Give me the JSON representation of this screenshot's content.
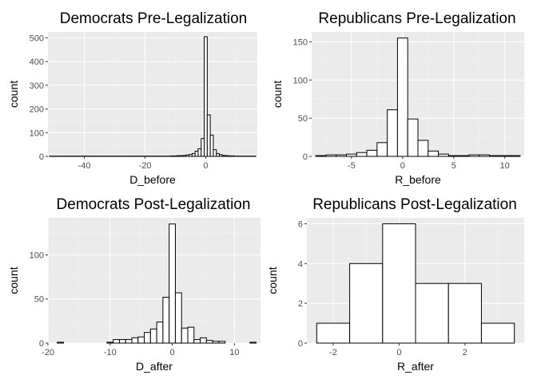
{
  "chart_data": [
    {
      "type": "bar",
      "title": "Democrats Pre-Legalization",
      "xlabel": "D_before",
      "ylabel": "count",
      "xlim": [
        -52,
        17
      ],
      "ylim": [
        0,
        525
      ],
      "xticks": [
        -40,
        -20,
        0
      ],
      "yticks": [
        0,
        100,
        200,
        300,
        400,
        500
      ],
      "bin_width": 1,
      "bins": [
        {
          "x": -51,
          "count": 1
        },
        {
          "x": -50,
          "count": 1
        },
        {
          "x": -49,
          "count": 1
        },
        {
          "x": -48,
          "count": 1
        },
        {
          "x": -47,
          "count": 1
        },
        {
          "x": -46,
          "count": 1
        },
        {
          "x": -45,
          "count": 1
        },
        {
          "x": -44,
          "count": 1
        },
        {
          "x": -43,
          "count": 1
        },
        {
          "x": -42,
          "count": 1
        },
        {
          "x": -41,
          "count": 1
        },
        {
          "x": -40,
          "count": 1
        },
        {
          "x": -39,
          "count": 1
        },
        {
          "x": -38,
          "count": 1
        },
        {
          "x": -37,
          "count": 1
        },
        {
          "x": -36,
          "count": 1
        },
        {
          "x": -35,
          "count": 1
        },
        {
          "x": -34,
          "count": 1
        },
        {
          "x": -33,
          "count": 1
        },
        {
          "x": -32,
          "count": 1
        },
        {
          "x": -31,
          "count": 1
        },
        {
          "x": -30,
          "count": 1
        },
        {
          "x": -29,
          "count": 1
        },
        {
          "x": -28,
          "count": 1
        },
        {
          "x": -27,
          "count": 1
        },
        {
          "x": -26,
          "count": 1
        },
        {
          "x": -25,
          "count": 1
        },
        {
          "x": -24,
          "count": 1
        },
        {
          "x": -23,
          "count": 1
        },
        {
          "x": -22,
          "count": 1
        },
        {
          "x": -21,
          "count": 1
        },
        {
          "x": -20,
          "count": 1
        },
        {
          "x": -19,
          "count": 1
        },
        {
          "x": -18,
          "count": 1
        },
        {
          "x": -17,
          "count": 1
        },
        {
          "x": -16,
          "count": 1
        },
        {
          "x": -15,
          "count": 1
        },
        {
          "x": -14,
          "count": 1
        },
        {
          "x": -13,
          "count": 1
        },
        {
          "x": -12,
          "count": 1
        },
        {
          "x": -11,
          "count": 2
        },
        {
          "x": -10,
          "count": 2
        },
        {
          "x": -9,
          "count": 3
        },
        {
          "x": -8,
          "count": 3
        },
        {
          "x": -7,
          "count": 4
        },
        {
          "x": -6,
          "count": 6
        },
        {
          "x": -5,
          "count": 8
        },
        {
          "x": -4,
          "count": 12
        },
        {
          "x": -3,
          "count": 22
        },
        {
          "x": -2,
          "count": 32
        },
        {
          "x": -1,
          "count": 75
        },
        {
          "x": 0,
          "count": 505
        },
        {
          "x": 1,
          "count": 175
        },
        {
          "x": 2,
          "count": 90
        },
        {
          "x": 3,
          "count": 28
        },
        {
          "x": 4,
          "count": 12
        },
        {
          "x": 5,
          "count": 7
        },
        {
          "x": 6,
          "count": 4
        },
        {
          "x": 7,
          "count": 3
        },
        {
          "x": 8,
          "count": 2
        },
        {
          "x": 9,
          "count": 2
        },
        {
          "x": 10,
          "count": 1
        },
        {
          "x": 11,
          "count": 1
        },
        {
          "x": 12,
          "count": 1
        },
        {
          "x": 13,
          "count": 1
        },
        {
          "x": 14,
          "count": 1
        },
        {
          "x": 15,
          "count": 1
        },
        {
          "x": 16,
          "count": 1
        }
      ]
    },
    {
      "type": "bar",
      "title": "Republicans Pre-Legalization",
      "xlabel": "R_before",
      "ylabel": "count",
      "xlim": [
        -8.9,
        11.9
      ],
      "ylim": [
        0,
        163
      ],
      "xticks": [
        -5,
        0,
        5,
        10
      ],
      "yticks": [
        0,
        50,
        100,
        150
      ],
      "bin_width": 1,
      "bins": [
        {
          "x": -8,
          "count": 1
        },
        {
          "x": -7,
          "count": 2
        },
        {
          "x": -6,
          "count": 2
        },
        {
          "x": -5,
          "count": 3
        },
        {
          "x": -4,
          "count": 5
        },
        {
          "x": -3,
          "count": 8
        },
        {
          "x": -2,
          "count": 18
        },
        {
          "x": -1,
          "count": 61
        },
        {
          "x": 0,
          "count": 155
        },
        {
          "x": 1,
          "count": 49
        },
        {
          "x": 2,
          "count": 21
        },
        {
          "x": 3,
          "count": 7
        },
        {
          "x": 4,
          "count": 3
        },
        {
          "x": 5,
          "count": 1
        },
        {
          "x": 6,
          "count": 1
        },
        {
          "x": 7,
          "count": 2
        },
        {
          "x": 8,
          "count": 2
        },
        {
          "x": 9,
          "count": 1
        },
        {
          "x": 10,
          "count": 1
        },
        {
          "x": 11,
          "count": 1
        }
      ]
    },
    {
      "type": "bar",
      "title": "Democrats Post-Legalization",
      "xlabel": "D_after",
      "ylabel": "count",
      "xlim": [
        -20,
        14.2
      ],
      "ylim": [
        0,
        142
      ],
      "xticks": [
        -20,
        -10,
        0,
        10
      ],
      "yticks": [
        0,
        50,
        100
      ],
      "bin_width": 1,
      "bins": [
        {
          "x": -18,
          "count": 1
        },
        {
          "x": -17,
          "count": 0
        },
        {
          "x": -16,
          "count": 0
        },
        {
          "x": -15,
          "count": 0
        },
        {
          "x": -14,
          "count": 0
        },
        {
          "x": -13,
          "count": 0
        },
        {
          "x": -12,
          "count": 0
        },
        {
          "x": -11,
          "count": 0
        },
        {
          "x": -10,
          "count": 1
        },
        {
          "x": -9,
          "count": 4
        },
        {
          "x": -8,
          "count": 4
        },
        {
          "x": -7,
          "count": 4
        },
        {
          "x": -6,
          "count": 6
        },
        {
          "x": -5,
          "count": 7
        },
        {
          "x": -4,
          "count": 12
        },
        {
          "x": -3,
          "count": 16
        },
        {
          "x": -2,
          "count": 24
        },
        {
          "x": -1,
          "count": 52
        },
        {
          "x": 0,
          "count": 135
        },
        {
          "x": 1,
          "count": 57
        },
        {
          "x": 2,
          "count": 17
        },
        {
          "x": 3,
          "count": 18
        },
        {
          "x": 4,
          "count": 4
        },
        {
          "x": 5,
          "count": 6
        },
        {
          "x": 6,
          "count": 3
        },
        {
          "x": 7,
          "count": 2
        },
        {
          "x": 8,
          "count": 2
        },
        {
          "x": 9,
          "count": 0
        },
        {
          "x": 10,
          "count": 0
        },
        {
          "x": 11,
          "count": 0
        },
        {
          "x": 12,
          "count": 0
        },
        {
          "x": 13,
          "count": 1
        }
      ]
    },
    {
      "type": "bar",
      "title": "Republicans Post-Legalization",
      "xlabel": "R_after",
      "ylabel": "count",
      "xlim": [
        -2.8,
        3.8
      ],
      "ylim": [
        0,
        6.3
      ],
      "xticks": [
        -2,
        0,
        2
      ],
      "yticks": [
        0,
        2,
        4,
        6
      ],
      "bin_width": 1,
      "bins": [
        {
          "x": -2,
          "count": 1
        },
        {
          "x": -1,
          "count": 4
        },
        {
          "x": 0,
          "count": 6
        },
        {
          "x": 1,
          "count": 3
        },
        {
          "x": 2,
          "count": 3
        },
        {
          "x": 3,
          "count": 1
        }
      ]
    }
  ]
}
